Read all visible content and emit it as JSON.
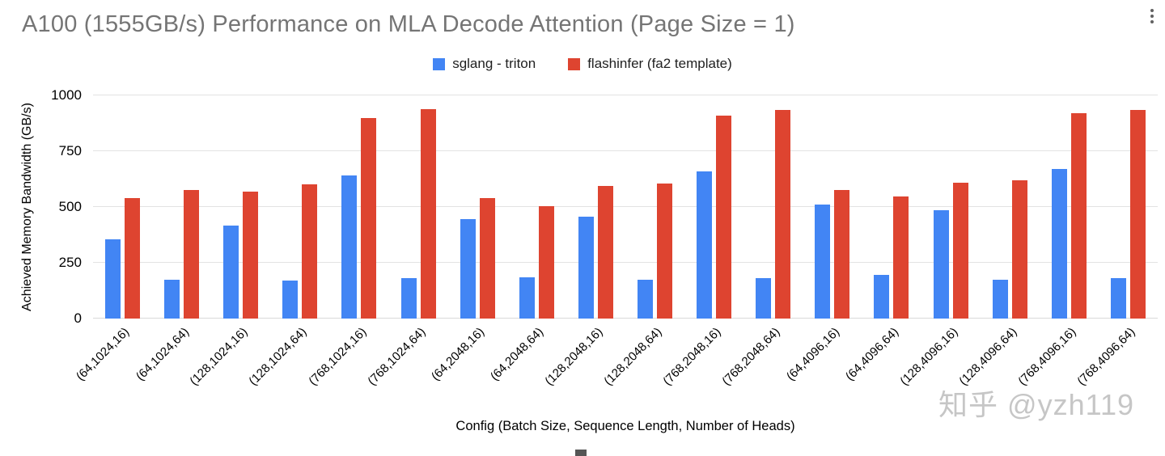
{
  "watermark": {
    "text": "知乎 @yzh119"
  },
  "chart_data": {
    "type": "bar",
    "title": "A100 (1555GB/s) Performance on MLA Decode Attention (Page Size = 1)",
    "xlabel": "Config (Batch Size, Sequence Length, Number of Heads)",
    "ylabel": "Achieved Memory Bandwidth (GB/s)",
    "ylim": [
      0,
      1000
    ],
    "yticks": [
      0,
      250,
      500,
      750,
      1000
    ],
    "grid": true,
    "legend_position": "top-center",
    "title_color": "#757575",
    "categories": [
      "(64,1024,16)",
      "(64,1024,64)",
      "(128,1024,16)",
      "(128,1024,64)",
      "(768,1024,16)",
      "(768,1024,64)",
      "(64,2048,16)",
      "(64,2048,64)",
      "(128,2048,16)",
      "(128,2048,64)",
      "(768,2048,16)",
      "(768,2048,64)",
      "(64,4096,16)",
      "(64,4096,64)",
      "(128,4096,16)",
      "(128,4096,64)",
      "(768,4096,16)",
      "(768,4096,64)"
    ],
    "series": [
      {
        "name": "sglang - triton",
        "color": "#4285F4",
        "values": [
          355,
          175,
          415,
          170,
          640,
          180,
          445,
          185,
          455,
          175,
          660,
          180,
          510,
          195,
          485,
          175,
          670,
          180
        ]
      },
      {
        "name": "flashinfer (fa2 template)",
        "color": "#DE4430",
        "values": [
          540,
          575,
          570,
          600,
          900,
          940,
          540,
          505,
          595,
          605,
          910,
          935,
          575,
          548,
          610,
          620,
          920,
          935
        ]
      }
    ]
  }
}
